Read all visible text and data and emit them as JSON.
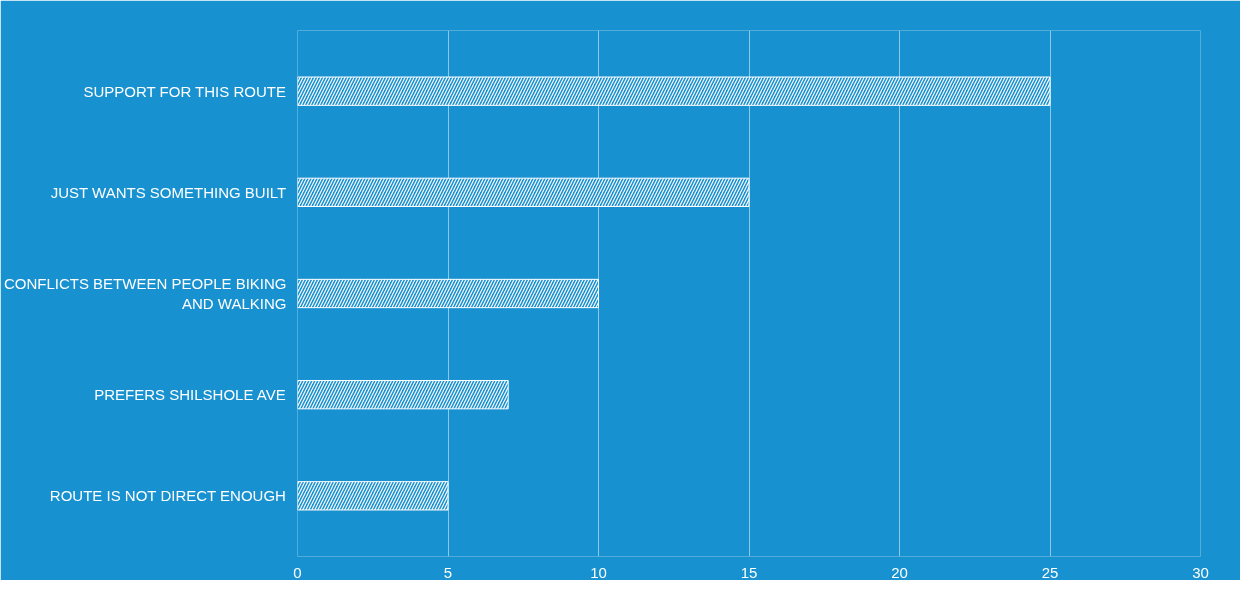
{
  "chart_data": {
    "type": "bar",
    "orientation": "horizontal",
    "categories": [
      "SUPPORT FOR THIS ROUTE",
      "JUST WANTS SOMETHING BUILT",
      "CONFLICTS BETWEEN PEOPLE BIKING AND WALKING",
      "PREFERS SHILSHOLE AVE",
      "ROUTE IS NOT DIRECT ENOUGH"
    ],
    "values": [
      25,
      15,
      10,
      7,
      5
    ],
    "color": "#ffffff",
    "xlim": [
      0,
      30
    ],
    "xticks": [
      0,
      5,
      10,
      15,
      20,
      25,
      30
    ],
    "grid": "x"
  }
}
